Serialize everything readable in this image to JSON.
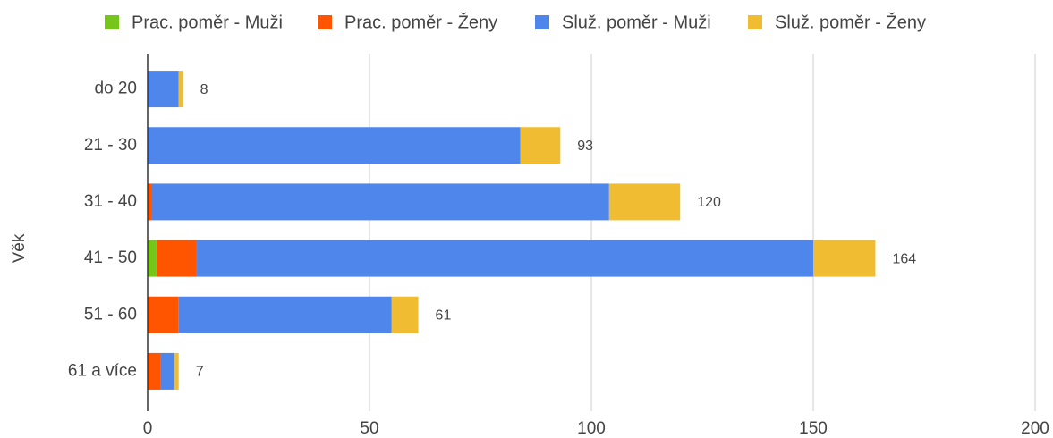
{
  "chart_data": {
    "type": "stacked-bar-horizontal",
    "y_label": "Věk",
    "categories": [
      "do 20",
      "21 - 30",
      "31 - 40",
      "41 - 50",
      "51 - 60",
      "61 a více"
    ],
    "series": [
      {
        "name": "Prac. poměr - Muži",
        "color": "#76c51b",
        "values": [
          0,
          0,
          0,
          2,
          0,
          0
        ]
      },
      {
        "name": "Prac. poměr - Ženy",
        "color": "#ff5400",
        "values": [
          0,
          0,
          1,
          9,
          7,
          3
        ]
      },
      {
        "name": "Služ. poměr - Muži",
        "color": "#4f86ec",
        "values": [
          7,
          84,
          103,
          139,
          48,
          3
        ]
      },
      {
        "name": "Služ. poměr - Ženy",
        "color": "#f0bd32",
        "values": [
          1,
          9,
          16,
          14,
          6,
          1
        ]
      }
    ],
    "totals": [
      8,
      93,
      120,
      164,
      61,
      7
    ],
    "xlim": [
      0,
      200
    ],
    "xticks": [
      0,
      50,
      100,
      150,
      200
    ],
    "grid": true,
    "legend": "top"
  }
}
